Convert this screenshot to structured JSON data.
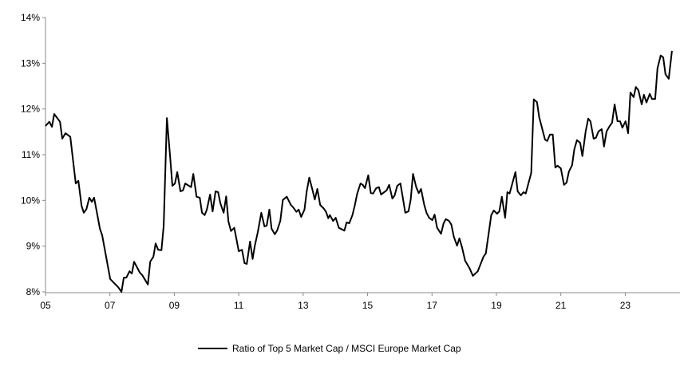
{
  "chart_data": {
    "type": "line",
    "title": "",
    "xlabel": "",
    "ylabel": "",
    "xlim": [
      2005,
      2024.7
    ],
    "ylim": [
      8,
      14
    ],
    "grid": false,
    "legend_position": "bottom",
    "x_ticks": [
      {
        "value": 2005,
        "label": "05"
      },
      {
        "value": 2007,
        "label": "07"
      },
      {
        "value": 2009,
        "label": "09"
      },
      {
        "value": 2011,
        "label": "11"
      },
      {
        "value": 2013,
        "label": "13"
      },
      {
        "value": 2015,
        "label": "15"
      },
      {
        "value": 2017,
        "label": "17"
      },
      {
        "value": 2019,
        "label": "19"
      },
      {
        "value": 2021,
        "label": "21"
      },
      {
        "value": 2023,
        "label": "23"
      }
    ],
    "y_ticks": [
      {
        "value": 8,
        "label": "8%"
      },
      {
        "value": 9,
        "label": "9%"
      },
      {
        "value": 10,
        "label": "10%"
      },
      {
        "value": 11,
        "label": "11%"
      },
      {
        "value": 12,
        "label": "12%"
      },
      {
        "value": 13,
        "label": "13%"
      },
      {
        "value": 14,
        "label": "14%"
      }
    ],
    "series": [
      {
        "name": "Ratio of Top 5 Market Cap / MSCI Europe Market Cap",
        "color": "#000000",
        "x": [
          2005.0,
          2005.12,
          2005.2,
          2005.27,
          2005.45,
          2005.52,
          2005.62,
          2005.77,
          2005.94,
          2006.02,
          2006.12,
          2006.19,
          2006.27,
          2006.36,
          2006.44,
          2006.51,
          2006.61,
          2006.69,
          2006.76,
          2007.01,
          2007.26,
          2007.36,
          2007.43,
          2007.51,
          2007.61,
          2007.68,
          2007.75,
          2007.93,
          2008.0,
          2008.18,
          2008.25,
          2008.35,
          2008.42,
          2008.5,
          2008.6,
          2008.67,
          2008.77,
          2008.87,
          2008.94,
          2009.02,
          2009.09,
          2009.19,
          2009.27,
          2009.34,
          2009.52,
          2009.59,
          2009.69,
          2009.79,
          2009.86,
          2009.94,
          2010.01,
          2010.11,
          2010.19,
          2010.28,
          2010.36,
          2010.43,
          2010.53,
          2010.61,
          2010.68,
          2010.76,
          2010.86,
          2010.93,
          2011.0,
          2011.1,
          2011.18,
          2011.25,
          2011.35,
          2011.43,
          2011.5,
          2011.6,
          2011.7,
          2011.8,
          2011.87,
          2011.95,
          2012.02,
          2012.12,
          2012.19,
          2012.29,
          2012.37,
          2012.49,
          2012.62,
          2012.69,
          2012.79,
          2012.86,
          2012.94,
          2013.04,
          2013.11,
          2013.19,
          2013.29,
          2013.36,
          2013.44,
          2013.53,
          2013.63,
          2013.71,
          2013.78,
          2013.83,
          2013.93,
          2014.01,
          2014.11,
          2014.28,
          2014.35,
          2014.43,
          2014.53,
          2014.6,
          2014.68,
          2014.78,
          2014.85,
          2014.92,
          2015.02,
          2015.1,
          2015.17,
          2015.27,
          2015.35,
          2015.42,
          2015.59,
          2015.67,
          2015.77,
          2015.84,
          2015.92,
          2016.02,
          2016.09,
          2016.17,
          2016.27,
          2016.34,
          2016.41,
          2016.51,
          2016.59,
          2016.66,
          2016.76,
          2016.83,
          2016.91,
          2017.01,
          2017.08,
          2017.16,
          2017.28,
          2017.36,
          2017.43,
          2017.53,
          2017.6,
          2017.68,
          2017.78,
          2017.85,
          2017.93,
          2018.03,
          2018.17,
          2018.27,
          2018.42,
          2018.6,
          2018.67,
          2018.77,
          2018.84,
          2018.92,
          2019.02,
          2019.09,
          2019.17,
          2019.27,
          2019.34,
          2019.41,
          2019.59,
          2019.66,
          2019.76,
          2019.84,
          2019.91,
          2020.08,
          2020.16,
          2020.26,
          2020.33,
          2020.51,
          2020.58,
          2020.66,
          2020.75,
          2020.83,
          2020.9,
          2021.0,
          2021.1,
          2021.18,
          2021.25,
          2021.35,
          2021.42,
          2021.5,
          2021.6,
          2021.67,
          2021.77,
          2021.85,
          2021.92,
          2022.02,
          2022.09,
          2022.17,
          2022.27,
          2022.34,
          2022.42,
          2022.52,
          2022.59,
          2022.67,
          2022.76,
          2022.84,
          2022.91,
          2023.01,
          2023.09,
          2023.16,
          2023.26,
          2023.33,
          2023.41,
          2023.51,
          2023.58,
          2023.66,
          2023.76,
          2023.83,
          2023.93,
          2024.0,
          2024.1,
          2024.18,
          2024.25,
          2024.35,
          2024.45
        ],
        "y": [
          11.63,
          11.72,
          11.61,
          11.89,
          11.72,
          11.35,
          11.47,
          11.39,
          10.37,
          10.43,
          9.88,
          9.73,
          9.81,
          10.06,
          9.97,
          10.06,
          9.68,
          9.38,
          9.24,
          8.28,
          8.1,
          8.0,
          8.31,
          8.31,
          8.45,
          8.4,
          8.66,
          8.42,
          8.37,
          8.16,
          8.66,
          8.77,
          9.06,
          8.92,
          8.91,
          9.45,
          11.8,
          10.95,
          10.32,
          10.37,
          10.62,
          10.2,
          10.22,
          10.37,
          10.29,
          10.58,
          10.08,
          10.06,
          9.73,
          9.68,
          9.8,
          10.13,
          9.76,
          10.2,
          10.18,
          9.94,
          9.73,
          10.09,
          9.54,
          9.33,
          9.4,
          9.15,
          8.89,
          8.92,
          8.63,
          8.61,
          9.1,
          8.72,
          9.01,
          9.33,
          9.73,
          9.43,
          9.45,
          9.8,
          9.38,
          9.26,
          9.34,
          9.55,
          10.01,
          10.08,
          9.9,
          9.85,
          9.75,
          9.8,
          9.64,
          9.8,
          10.2,
          10.5,
          10.23,
          10.02,
          10.25,
          9.9,
          9.83,
          9.75,
          9.61,
          9.68,
          9.55,
          9.62,
          9.4,
          9.34,
          9.52,
          9.5,
          9.68,
          9.88,
          10.15,
          10.37,
          10.34,
          10.27,
          10.55,
          10.16,
          10.15,
          10.27,
          10.29,
          10.13,
          10.22,
          10.34,
          10.04,
          10.11,
          10.32,
          10.37,
          10.08,
          9.73,
          9.76,
          10.02,
          10.58,
          10.29,
          10.16,
          10.25,
          9.9,
          9.73,
          9.62,
          9.57,
          9.69,
          9.4,
          9.27,
          9.5,
          9.59,
          9.55,
          9.47,
          9.2,
          9.01,
          9.17,
          8.98,
          8.68,
          8.51,
          8.35,
          8.45,
          8.77,
          8.84,
          9.33,
          9.68,
          9.78,
          9.71,
          9.76,
          10.08,
          9.62,
          10.18,
          10.15,
          10.62,
          10.2,
          10.11,
          10.18,
          10.15,
          10.6,
          12.21,
          12.15,
          11.82,
          11.33,
          11.3,
          11.44,
          11.44,
          10.72,
          10.76,
          10.7,
          10.34,
          10.39,
          10.63,
          10.77,
          11.12,
          11.32,
          11.26,
          10.97,
          11.51,
          11.79,
          11.73,
          11.35,
          11.37,
          11.51,
          11.56,
          11.18,
          11.51,
          11.63,
          11.7,
          12.1,
          11.73,
          11.73,
          11.59,
          11.73,
          11.47,
          12.36,
          12.26,
          12.48,
          12.41,
          12.1,
          12.31,
          12.14,
          12.33,
          12.22,
          12.22,
          12.89,
          13.17,
          13.13,
          12.76,
          12.66,
          13.27
        ]
      }
    ]
  }
}
